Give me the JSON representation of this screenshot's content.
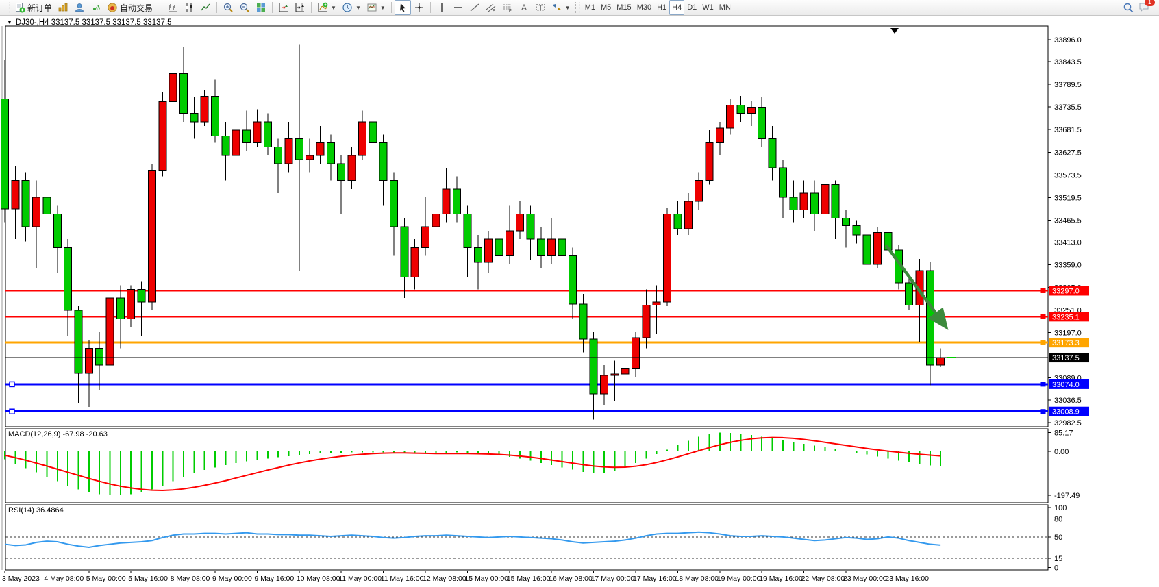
{
  "toolbar": {
    "new_order_label": "新订单",
    "autotrade_label": "自动交易",
    "timeframes": [
      "M1",
      "M5",
      "M15",
      "M30",
      "H1",
      "H4",
      "D1",
      "W1",
      "MN"
    ],
    "active_timeframe": "H4",
    "badge_count": "1"
  },
  "chart": {
    "title": "DJ30-,H4  33137.5 33137.5 33137.5 33137.5",
    "macd_label": "MACD(12,26,9) -67.98 -20.63",
    "rsi_label": "RSI(14) 36.4864",
    "arrow": {
      "from_bar": 83.8,
      "from_price": 33406,
      "to_bar": 89.3,
      "to_price": 33218,
      "color": "#3C8A3C"
    }
  },
  "chart_data": [
    {
      "type": "candlestick",
      "name": "DJ30- H4",
      "bull_color": "#EE0000",
      "bear_color": "#00CC00",
      "ylim": [
        32982.5,
        33896.0
      ],
      "y_ticks": [
        "33896.0",
        "33843.5",
        "33789.5",
        "33735.5",
        "33681.5",
        "33627.5",
        "33573.5",
        "33519.5",
        "33465.5",
        "33413.0",
        "33359.0",
        "33305.0",
        "33251.0",
        "33197.0",
        "33143.0",
        "33089.0",
        "33036.5",
        "32982.5"
      ],
      "x_labels": [
        "3 May 2023",
        "4 May 08:00",
        "5 May 00:00",
        "5 May 16:00",
        "8 May 08:00",
        "9 May 00:00",
        "9 May 16:00",
        "10 May 08:00",
        "11 May 00:00",
        "11 May 16:00",
        "12 May 08:00",
        "15 May 00:00",
        "15 May 16:00",
        "16 May 08:00",
        "17 May 00:00",
        "17 May 16:00",
        "18 May 08:00",
        "19 May 00:00",
        "19 May 16:00",
        "22 May 08:00",
        "23 May 00:00",
        "23 May 16:00"
      ],
      "levels": [
        {
          "label": "33297.0",
          "value": 33297.0,
          "color": "#FF0000",
          "width": 2,
          "left_handle": false
        },
        {
          "label": "33235.1",
          "value": 33235.1,
          "color": "#FF0000",
          "width": 2,
          "left_handle": false
        },
        {
          "label": "33173.3",
          "value": 33173.3,
          "color": "#FFA500",
          "width": 3,
          "left_handle": false
        },
        {
          "label": "33074.0",
          "value": 33074.0,
          "color": "#0000FF",
          "width": 3,
          "left_handle": true
        },
        {
          "label": "33008.9",
          "value": 33008.9,
          "color": "#0000FF",
          "width": 3,
          "left_handle": true
        }
      ],
      "current_price": {
        "label": "33137.5",
        "value": 33137.5,
        "color": "#000000"
      },
      "ohlc": [
        [
          33755,
          33848,
          33460,
          33492
        ],
        [
          33492,
          33595,
          33420,
          33560
        ],
        [
          33560,
          33580,
          33415,
          33450
        ],
        [
          33450,
          33560,
          33350,
          33520
        ],
        [
          33520,
          33545,
          33430,
          33480
        ],
        [
          33480,
          33500,
          33340,
          33400
        ],
        [
          33400,
          33420,
          33190,
          33250
        ],
        [
          33250,
          33260,
          33030,
          33100
        ],
        [
          33100,
          33180,
          33020,
          33160
        ],
        [
          33160,
          33200,
          33060,
          33120
        ],
        [
          33120,
          33300,
          33100,
          33280
        ],
        [
          33280,
          33310,
          33160,
          33230
        ],
        [
          33230,
          33310,
          33210,
          33300
        ],
        [
          33300,
          33320,
          33190,
          33270
        ],
        [
          33270,
          33600,
          33250,
          33585
        ],
        [
          33585,
          33770,
          33570,
          33748
        ],
        [
          33748,
          33830,
          33740,
          33815
        ],
        [
          33815,
          33880,
          33700,
          33720
        ],
        [
          33720,
          33760,
          33660,
          33700
        ],
        [
          33700,
          33775,
          33690,
          33761
        ],
        [
          33761,
          33800,
          33650,
          33666
        ],
        [
          33666,
          33700,
          33560,
          33620
        ],
        [
          33620,
          33690,
          33600,
          33680
        ],
        [
          33680,
          33727,
          33630,
          33650
        ],
        [
          33650,
          33730,
          33640,
          33700
        ],
        [
          33700,
          33720,
          33620,
          33640
        ],
        [
          33640,
          33660,
          33530,
          33600
        ],
        [
          33600,
          33700,
          33580,
          33660
        ],
        [
          33660,
          33885,
          33345,
          33610
        ],
        [
          33610,
          33660,
          33580,
          33620
        ],
        [
          33620,
          33690,
          33600,
          33650
        ],
        [
          33650,
          33670,
          33560,
          33600
        ],
        [
          33600,
          33620,
          33480,
          33560
        ],
        [
          33560,
          33640,
          33540,
          33620
        ],
        [
          33620,
          33727,
          33610,
          33700
        ],
        [
          33700,
          33730,
          33630,
          33650
        ],
        [
          33650,
          33670,
          33500,
          33560
        ],
        [
          33560,
          33580,
          33380,
          33450
        ],
        [
          33450,
          33470,
          33280,
          33330
        ],
        [
          33330,
          33420,
          33300,
          33400
        ],
        [
          33400,
          33520,
          33380,
          33450
        ],
        [
          33450,
          33500,
          33410,
          33480
        ],
        [
          33480,
          33590,
          33460,
          33540
        ],
        [
          33540,
          33570,
          33460,
          33480
        ],
        [
          33480,
          33500,
          33330,
          33400
        ],
        [
          33400,
          33430,
          33300,
          33365
        ],
        [
          33365,
          33440,
          33340,
          33420
        ],
        [
          33420,
          33450,
          33360,
          33380
        ],
        [
          33380,
          33500,
          33360,
          33440
        ],
        [
          33440,
          33510,
          33420,
          33480
        ],
        [
          33480,
          33500,
          33370,
          33420
        ],
        [
          33420,
          33450,
          33350,
          33380
        ],
        [
          33380,
          33470,
          33360,
          33420
        ],
        [
          33420,
          33440,
          33340,
          33380
        ],
        [
          33380,
          33400,
          33230,
          33265
        ],
        [
          33265,
          33290,
          33150,
          33182
        ],
        [
          33182,
          33200,
          32990,
          33051
        ],
        [
          33051,
          33120,
          33025,
          33095
        ],
        [
          33095,
          33130,
          33035,
          33098
        ],
        [
          33098,
          33160,
          33060,
          33112
        ],
        [
          33112,
          33200,
          33090,
          33185
        ],
        [
          33185,
          33300,
          33160,
          33263
        ],
        [
          33263,
          33310,
          33195,
          33270
        ],
        [
          33270,
          33495,
          33260,
          33480
        ],
        [
          33480,
          33510,
          33430,
          33445
        ],
        [
          33445,
          33530,
          33430,
          33510
        ],
        [
          33510,
          33580,
          33490,
          33560
        ],
        [
          33560,
          33680,
          33550,
          33650
        ],
        [
          33650,
          33700,
          33620,
          33685
        ],
        [
          33685,
          33755,
          33670,
          33740
        ],
        [
          33740,
          33762,
          33700,
          33720
        ],
        [
          33720,
          33750,
          33690,
          33735
        ],
        [
          33735,
          33760,
          33640,
          33660
        ],
        [
          33660,
          33690,
          33560,
          33590
        ],
        [
          33590,
          33610,
          33470,
          33520
        ],
        [
          33520,
          33560,
          33460,
          33490
        ],
        [
          33490,
          33560,
          33470,
          33530
        ],
        [
          33530,
          33560,
          33440,
          33480
        ],
        [
          33480,
          33575,
          33460,
          33550
        ],
        [
          33550,
          33560,
          33420,
          33470
        ],
        [
          33470,
          33490,
          33400,
          33452
        ],
        [
          33452,
          33465,
          33410,
          33430
        ],
        [
          33430,
          33440,
          33340,
          33360
        ],
        [
          33360,
          33450,
          33350,
          33436
        ],
        [
          33436,
          33447,
          33380,
          33394
        ],
        [
          33394,
          33407,
          33300,
          33316
        ],
        [
          33316,
          33330,
          33250,
          33263
        ],
        [
          33263,
          33373,
          33174,
          33345
        ],
        [
          33345,
          33365,
          33071,
          33120
        ],
        [
          33120,
          33160,
          33115,
          33137.5
        ]
      ]
    },
    {
      "type": "bar",
      "name": "MACD histogram",
      "color": "#00CC00",
      "ylim": [
        -197.49,
        85.17
      ],
      "y_ticks": [
        "85.17",
        "0.00",
        "-197.49"
      ],
      "values": [
        -35,
        -55,
        -75,
        -95,
        -115,
        -135,
        -155,
        -172,
        -185,
        -193,
        -196,
        -197.5,
        -193,
        -185,
        -172,
        -155,
        -135,
        -115,
        -98,
        -84,
        -72,
        -62,
        -53,
        -45,
        -38,
        -32,
        -26,
        -21,
        -17,
        -13,
        -10,
        -8,
        -6,
        -5,
        -4,
        -4,
        -5,
        -6,
        -8,
        -10,
        -9,
        -8,
        -6,
        -5,
        -6,
        -8,
        -12,
        -17,
        -24,
        -32,
        -42,
        -52,
        -62,
        -72,
        -82,
        -92,
        -99,
        -96,
        -86,
        -70,
        -52,
        -32,
        -12,
        8,
        28,
        48,
        66,
        78,
        85,
        84,
        80,
        74,
        66,
        58,
        50,
        42,
        34,
        26,
        18,
        10,
        2,
        -6,
        -14,
        -23,
        -32,
        -41,
        -50,
        -57,
        -63,
        -68
      ]
    },
    {
      "type": "line",
      "name": "MACD signal",
      "color": "#FF0000",
      "values": [
        -18,
        -28,
        -40,
        -53,
        -66,
        -80,
        -94,
        -108,
        -122,
        -135,
        -147,
        -157,
        -165,
        -171,
        -175,
        -176,
        -174,
        -169,
        -162,
        -153,
        -143,
        -132,
        -120,
        -108,
        -96,
        -84,
        -73,
        -62,
        -52,
        -43,
        -35,
        -28,
        -22,
        -17,
        -13,
        -10,
        -8,
        -7,
        -7,
        -8,
        -9,
        -10,
        -10,
        -10,
        -10,
        -11,
        -12,
        -14,
        -17,
        -21,
        -26,
        -32,
        -39,
        -46,
        -53,
        -60,
        -66,
        -70,
        -72,
        -71,
        -67,
        -60,
        -50,
        -38,
        -25,
        -11,
        3,
        17,
        30,
        41,
        50,
        57,
        61,
        63,
        62,
        59,
        54,
        48,
        41,
        34,
        27,
        20,
        13,
        7,
        1,
        -4,
        -9,
        -13,
        -17,
        -20.63
      ]
    },
    {
      "type": "line",
      "name": "RSI(14)",
      "color": "#3399EE",
      "ylim": [
        0,
        100
      ],
      "y_ticks": [
        "100",
        "80",
        "50",
        "15",
        "0"
      ],
      "levels": [
        80,
        50,
        15
      ],
      "current": 36.4864,
      "values": [
        38,
        36,
        37,
        41,
        43,
        42,
        38,
        35,
        33,
        36,
        38,
        40,
        41,
        42,
        44,
        49,
        53,
        55,
        55,
        56,
        56,
        55,
        56,
        57,
        55,
        55,
        54,
        54,
        53,
        53,
        52,
        51,
        52,
        53,
        52,
        51,
        49,
        48,
        49,
        51,
        52,
        52,
        53,
        52,
        51,
        50,
        49,
        50,
        51,
        50,
        49,
        48,
        47,
        45,
        42,
        40,
        41,
        42,
        43,
        45,
        48,
        52,
        55,
        56,
        56,
        57,
        58,
        57,
        55,
        52,
        51,
        51,
        52,
        51,
        50,
        48,
        46,
        44,
        45,
        47,
        49,
        48,
        46,
        47,
        50,
        48,
        44,
        41,
        38,
        36.49
      ]
    }
  ]
}
